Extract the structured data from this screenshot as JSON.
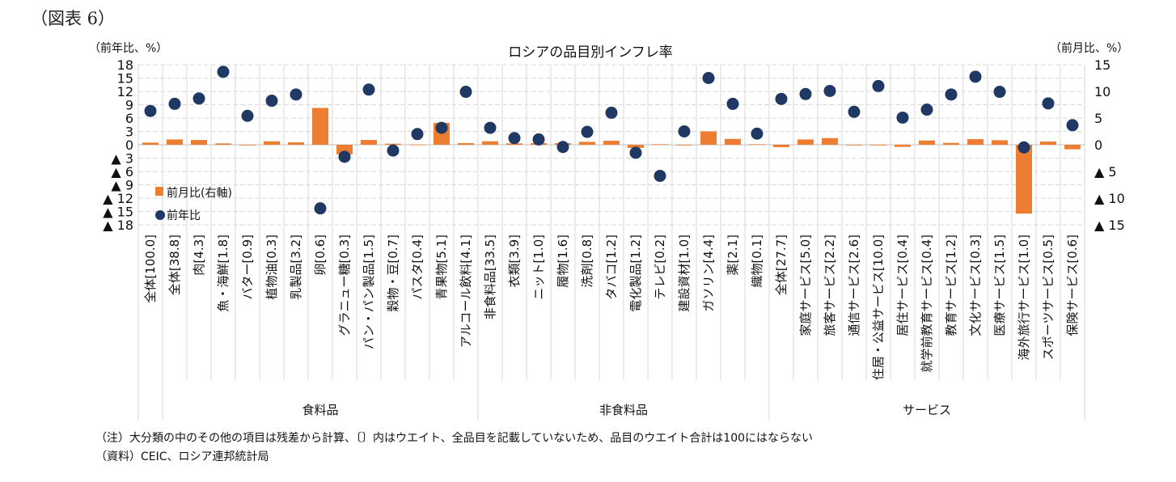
{
  "figure_label": "（図表 6）",
  "chart_data": {
    "type": "bar+scatter",
    "title": "ロシアの品目別インフレ率",
    "left_axis_label": "（前年比、%）",
    "right_axis_label": "（前月比、%）",
    "left_ylim": [
      -18,
      18
    ],
    "left_ticks": [
      "18",
      "15",
      "12",
      "9",
      "6",
      "3",
      "0",
      "▲ 3",
      "▲ 6",
      "▲ 9",
      "▲ 12",
      "▲ 15",
      "▲ 18"
    ],
    "right_ylim": [
      -15,
      15
    ],
    "right_ticks": [
      "15",
      "10",
      "5",
      "0",
      "▲ 5",
      "▲ 10",
      "▲ 15"
    ],
    "grid": true,
    "legend_position": "left-bottom inside",
    "colors": {
      "mom": "#ED7D31",
      "yoy": "#1F3864"
    },
    "categories": [
      "全体[100.0]",
      "全体[38.8]",
      "肉[4.3]",
      "魚・海鮮[1.8]",
      "バター[0.9]",
      "植物油[0.3]",
      "乳製品[3.2]",
      "卵[0.6]",
      "グラニュー糖[0.3]",
      "パン・パン製品[1.5]",
      "穀物・豆[0.7]",
      "パスタ[0.4]",
      "青果物[5.1]",
      "アルコール飲料[4.1]",
      "非食料品[33.5]",
      "衣類[3.9]",
      "ニット[1.0]",
      "履物[1.6]",
      "洗剤[0.8]",
      "タバコ[1.2]",
      "電化製品[1.2]",
      "テレビ[0.2]",
      "建設資材[1.0]",
      "ガソリン[4.4]",
      "薬[2.1]",
      "織物[0.1]",
      "全体[27.7]",
      "家庭サービス[5.0]",
      "旅客サービス[2.2]",
      "通信サービス[2.6]",
      "住居・公益サービス[10.0]",
      "居住サービス[0.4]",
      "就学前教育サービス[0.4]",
      "教育サービス[1.2]",
      "文化サービス[0.3]",
      "医療サービス[1.5]",
      "海外旅行サービス[1.0]",
      "スポーツサービス[0.5]",
      "保険サービス[0.6]"
    ],
    "groups": [
      {
        "name": "食料品",
        "count": 13
      },
      {
        "name": "非食料品",
        "count": 12
      },
      {
        "name": "サービス",
        "count": 13
      }
    ],
    "series": [
      {
        "name": "前月比(右軸)",
        "type": "bar",
        "axis": "right",
        "values": [
          0.4,
          1.0,
          0.9,
          0.25,
          -0.1,
          0.65,
          0.45,
          6.9,
          -1.8,
          0.9,
          0.2,
          0.05,
          4.1,
          0.3,
          0.65,
          0.25,
          0.3,
          0.3,
          0.55,
          0.75,
          -0.6,
          0.1,
          -0.1,
          2.5,
          1.1,
          0.1,
          -0.45,
          1.0,
          1.25,
          0,
          0,
          -0.4,
          0.8,
          0.35,
          1.05,
          0.85,
          -12.9,
          0.6,
          -0.85
        ]
      },
      {
        "name": "前年比",
        "type": "scatter",
        "axis": "left",
        "values": [
          7.6,
          9.2,
          10.4,
          16.4,
          6.5,
          9.9,
          11.3,
          -14.3,
          -2.7,
          12.4,
          -1.3,
          2.4,
          3.8,
          11.9,
          3.8,
          1.5,
          1.2,
          -0.5,
          2.9,
          7.2,
          -1.8,
          -7.0,
          3.0,
          15.0,
          9.2,
          2.5,
          10.3,
          11.4,
          12.1,
          7.4,
          13.2,
          6.1,
          7.9,
          11.3,
          15.3,
          11.9,
          -0.6,
          9.3,
          4.4
        ]
      }
    ]
  },
  "notes": [
    "（注）大分類の中のその他の項目は残差から計算、〔〕内はウエイト、全品目を記載していないため、品目のウエイト合計は100にはならない",
    "（資料）CEIC、ロシア連邦統計局"
  ]
}
